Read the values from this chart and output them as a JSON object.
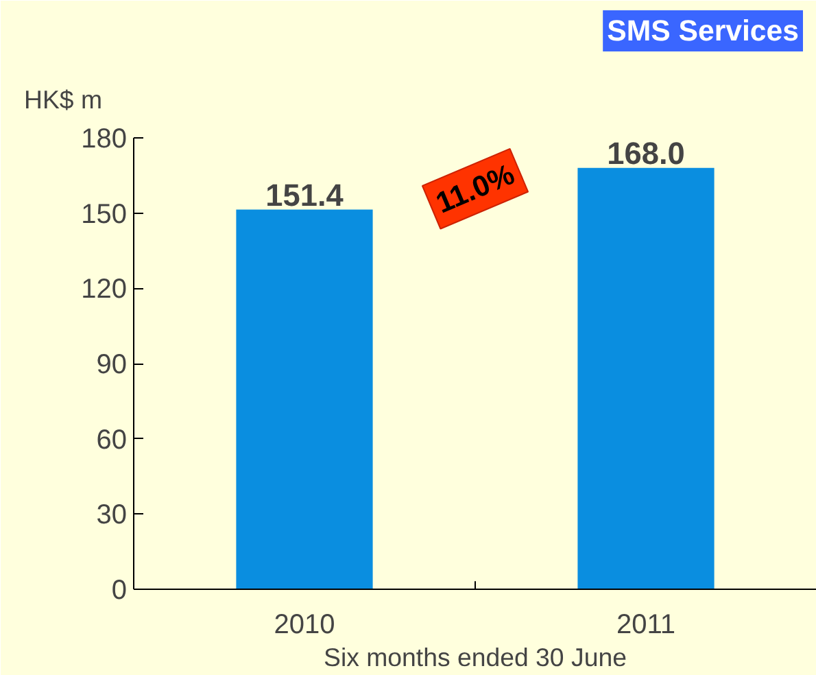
{
  "chart_data": {
    "type": "bar",
    "title": "SMS Services",
    "ylabel": "HK$ m",
    "xlabel": "Six months ended 30 June",
    "categories": [
      "2010",
      "2011"
    ],
    "values": [
      151.4,
      168.0
    ],
    "value_labels": [
      "151.4",
      "168.0"
    ],
    "color": "#0a8ee0",
    "ylim": [
      0,
      180
    ],
    "yticks": [
      0,
      30,
      60,
      90,
      120,
      150,
      180
    ],
    "grid": false,
    "annotations": [
      "11.0%"
    ]
  }
}
